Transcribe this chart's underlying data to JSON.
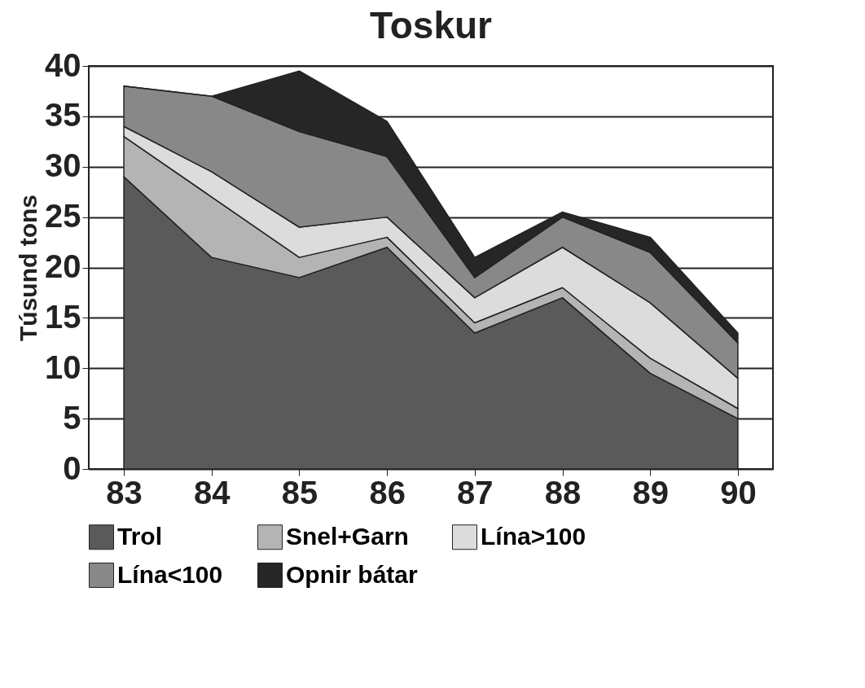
{
  "chart_data": {
    "type": "area",
    "title": "Toskur",
    "ylabel": "Túsund tons",
    "categories": [
      "83",
      "84",
      "85",
      "86",
      "87",
      "88",
      "89",
      "90"
    ],
    "stacked": true,
    "ylim": [
      0,
      40
    ],
    "yticks": [
      0,
      5,
      10,
      15,
      20,
      25,
      30,
      35,
      40
    ],
    "grid": "y",
    "legend": "bottom",
    "series": [
      {
        "name": "Trol",
        "color": "#5a5a5a",
        "values": [
          29,
          21,
          19,
          22,
          13.5,
          17,
          9.5,
          5
        ]
      },
      {
        "name": "Snel+Garn",
        "color": "#b4b4b4",
        "values": [
          4,
          6,
          2,
          1,
          1,
          1,
          1.5,
          1
        ]
      },
      {
        "name": "Lína>100",
        "color": "#dcdcdc",
        "values": [
          1,
          2.5,
          3,
          2,
          2.5,
          4,
          5.5,
          3
        ]
      },
      {
        "name": "Lína<100",
        "color": "#888888",
        "values": [
          4,
          7.5,
          9.5,
          6,
          2,
          3,
          5,
          3.5
        ]
      },
      {
        "name": "Opnir bátar",
        "color": "#262626",
        "values": [
          0,
          0,
          6,
          3.5,
          2,
          0.5,
          1.5,
          1
        ]
      }
    ]
  }
}
